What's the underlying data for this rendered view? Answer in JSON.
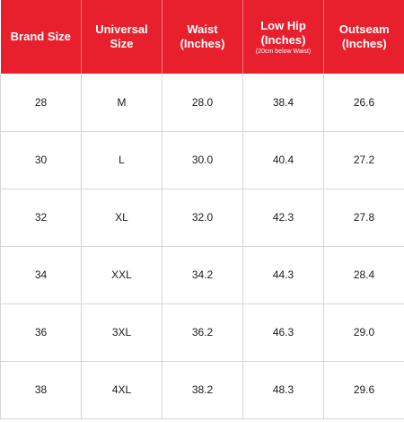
{
  "headers": {
    "brand_size": [
      "Brand Size"
    ],
    "universal_size": [
      "Universal",
      "Size"
    ],
    "waist": [
      "Waist",
      "(Inches)"
    ],
    "low_hip": [
      "Low Hip",
      "(Inches)"
    ],
    "low_hip_note": "(20cm below Waist)",
    "outseam": [
      "Outseam",
      "(Inches)"
    ]
  },
  "rows": [
    {
      "brand_size": "28",
      "universal_size": "M",
      "waist": "28.0",
      "low_hip": "38.4",
      "outseam": "26.6"
    },
    {
      "brand_size": "30",
      "universal_size": "L",
      "waist": "30.0",
      "low_hip": "40.4",
      "outseam": "27.2"
    },
    {
      "brand_size": "32",
      "universal_size": "XL",
      "waist": "32.0",
      "low_hip": "42.3",
      "outseam": "27.8"
    },
    {
      "brand_size": "34",
      "universal_size": "XXL",
      "waist": "34.2",
      "low_hip": "44.3",
      "outseam": "28.4"
    },
    {
      "brand_size": "36",
      "universal_size": "3XL",
      "waist": "36.2",
      "low_hip": "46.3",
      "outseam": "29.0"
    },
    {
      "brand_size": "38",
      "universal_size": "4XL",
      "waist": "38.2",
      "low_hip": "48.3",
      "outseam": "29.6"
    }
  ],
  "colors": {
    "header_bg": "#e8202e",
    "header_text": "#ffffff",
    "grid": "#d6d6d6"
  }
}
